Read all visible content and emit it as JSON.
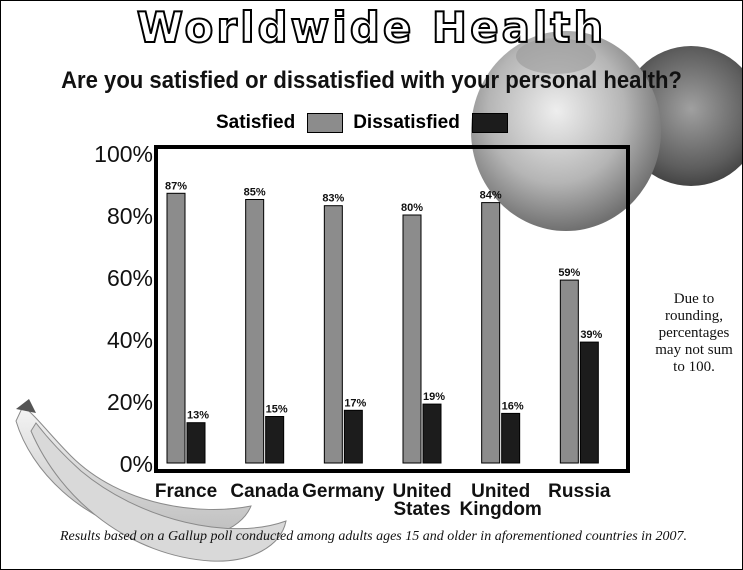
{
  "title": "Worldwide Health",
  "subtitle": "Are you satisfied or dissatisfied with your personal health?",
  "note": "Due to rounding, percentages may not sum to 100.",
  "footnote": "Results based on a Gallup poll conducted among adults ages 15 and older in aforementioned countries in 2007.",
  "colors": {
    "satisfied": "#8c8c8c",
    "dissatisfied": "#1c1c1c",
    "frame": "#000000"
  },
  "chart_data": {
    "type": "bar",
    "categories": [
      [
        "France"
      ],
      [
        "Canada"
      ],
      [
        "Germany"
      ],
      [
        "United",
        "States"
      ],
      [
        "United",
        "Kingdom"
      ],
      [
        "Russia"
      ]
    ],
    "series": [
      {
        "name": "Satisfied",
        "values": [
          87,
          85,
          83,
          80,
          84,
          59
        ],
        "labels": [
          "87%",
          "85%",
          "83%",
          "80%",
          "84%",
          "59%"
        ]
      },
      {
        "name": "Dissatisfied",
        "values": [
          13,
          15,
          17,
          19,
          16,
          39
        ],
        "labels": [
          "13%",
          "15%",
          "17%",
          "19%",
          "16%",
          "39%"
        ]
      }
    ],
    "yticks": [
      "0%",
      "20%",
      "40%",
      "60%",
      "80%",
      "100%"
    ],
    "ylim": [
      0,
      100
    ],
    "legend": "top",
    "grid": false
  }
}
